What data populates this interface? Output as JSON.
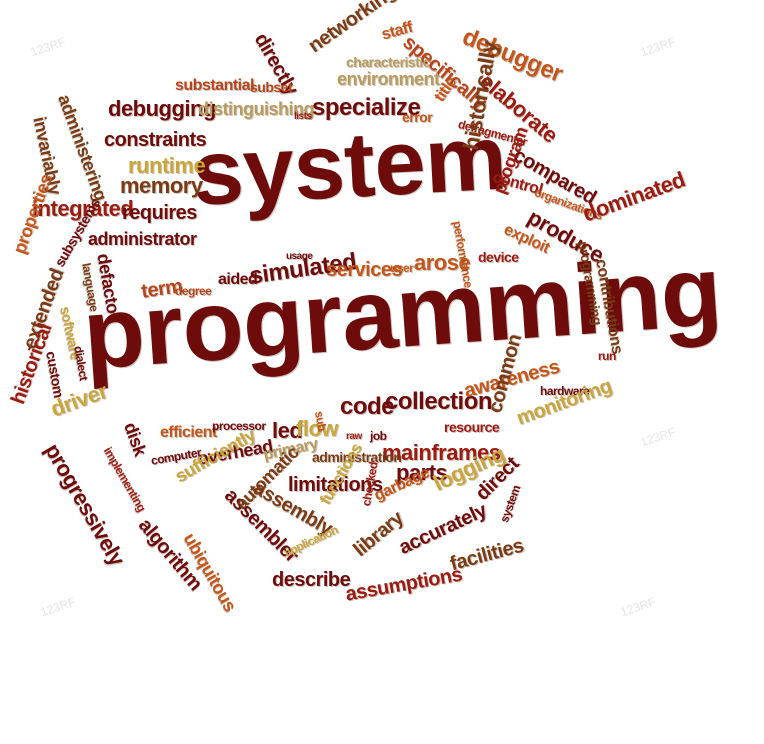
{
  "watermark": "123RF",
  "palette": {
    "maroon": "#6e0b0b",
    "red": "#9b1b10",
    "orange": "#c4561a",
    "tan": "#b89b5e",
    "brown": "#7a3b14",
    "gold": "#c9a63a"
  },
  "words": [
    {
      "text": "system",
      "color": "#6e0b0b"
    },
    {
      "text": "programming",
      "color": "#6e0b0b"
    },
    {
      "text": "directly",
      "color": "#6e0b0b"
    },
    {
      "text": "networking",
      "color": "#7a3b14"
    },
    {
      "text": "staff",
      "color": "#c4561a"
    },
    {
      "text": "specifically",
      "color": "#b8451a"
    },
    {
      "text": "debugger",
      "color": "#c4561a"
    },
    {
      "text": "characteristic",
      "color": "#b89b5e"
    },
    {
      "text": "environment",
      "color": "#b89b5e"
    },
    {
      "text": "elaborate",
      "color": "#9b1b10"
    },
    {
      "text": "substantial",
      "color": "#b8451a"
    },
    {
      "text": "subset",
      "color": "#b8451a"
    },
    {
      "text": "administering",
      "color": "#7a3b14"
    },
    {
      "text": "debugging",
      "color": "#6e0b0b"
    },
    {
      "text": "distinguishing",
      "color": "#b89b5e"
    },
    {
      "text": "specialize",
      "color": "#6e0b0b"
    },
    {
      "text": "title",
      "color": "#c4561a"
    },
    {
      "text": "lists",
      "color": "#9b1b10"
    },
    {
      "text": "error",
      "color": "#c4561a"
    },
    {
      "text": "defragmenter",
      "color": "#9b1b10"
    },
    {
      "text": "invariably",
      "color": "#7a3b14"
    },
    {
      "text": "constraints",
      "color": "#6e0b0b"
    },
    {
      "text": "runtime",
      "color": "#c9a63a"
    },
    {
      "text": "historically",
      "color": "#7a3b14"
    },
    {
      "text": "compared",
      "color": "#6e0b0b"
    },
    {
      "text": "control",
      "color": "#9b1b10"
    },
    {
      "text": "organizations",
      "color": "#c4561a"
    },
    {
      "text": "memory",
      "color": "#7a3b14"
    },
    {
      "text": "integrated",
      "color": "#9b1b10"
    },
    {
      "text": "requires",
      "color": "#6e0b0b"
    },
    {
      "text": "program",
      "color": "#9b1b10"
    },
    {
      "text": "produce",
      "color": "#6e0b0b"
    },
    {
      "text": "dominated",
      "color": "#9b1b10"
    },
    {
      "text": "exploit",
      "color": "#c4561a"
    },
    {
      "text": "administrator",
      "color": "#6e0b0b"
    },
    {
      "text": "usage",
      "color": "#6e0b0b"
    },
    {
      "text": "performance",
      "color": "#c4561a"
    },
    {
      "text": "properties",
      "color": "#c4561a"
    },
    {
      "text": "language",
      "color": "#7a3b14"
    },
    {
      "text": "defacto",
      "color": "#6e0b0b"
    },
    {
      "text": "subsystems",
      "color": "#6e0b0b"
    },
    {
      "text": "term",
      "color": "#b8451a"
    },
    {
      "text": "degree",
      "color": "#b8451a"
    },
    {
      "text": "aided",
      "color": "#6e0b0b"
    },
    {
      "text": "simulated",
      "color": "#6e0b0b"
    },
    {
      "text": "services",
      "color": "#c4561a"
    },
    {
      "text": "user",
      "color": "#c4561a"
    },
    {
      "text": "arose",
      "color": "#c4561a"
    },
    {
      "text": "device",
      "color": "#9b1b10"
    },
    {
      "text": "programming",
      "color": "#7a3b14"
    },
    {
      "text": "contributions",
      "color": "#7a3b14"
    },
    {
      "text": "software",
      "color": "#c9a63a"
    },
    {
      "text": "extended",
      "color": "#7a3b14"
    },
    {
      "text": "dialect",
      "color": "#6e0b0b"
    },
    {
      "text": "custom",
      "color": "#6e0b0b"
    },
    {
      "text": "run",
      "color": "#9b1b10"
    },
    {
      "text": "historical",
      "color": "#9b1b10"
    },
    {
      "text": "driver",
      "color": "#c9a63a"
    },
    {
      "text": "code",
      "color": "#6e0b0b"
    },
    {
      "text": "collection",
      "color": "#6e0b0b"
    },
    {
      "text": "awareness",
      "color": "#c4561a"
    },
    {
      "text": "hardware",
      "color": "#6e0b0b"
    },
    {
      "text": "resource",
      "color": "#9b1b10"
    },
    {
      "text": "common",
      "color": "#7a3b14"
    },
    {
      "text": "monitoring",
      "color": "#c9a63a"
    },
    {
      "text": "led",
      "color": "#6e0b0b"
    },
    {
      "text": "flow",
      "color": "#c9a63a"
    },
    {
      "text": "sub",
      "color": "#c4561a"
    },
    {
      "text": "job",
      "color": "#6e0b0b"
    },
    {
      "text": "raw",
      "color": "#9b1b10"
    },
    {
      "text": "disk",
      "color": "#6e0b0b"
    },
    {
      "text": "efficient",
      "color": "#c4561a"
    },
    {
      "text": "processor",
      "color": "#6e0b0b"
    },
    {
      "text": "mainframes",
      "color": "#9b1b10"
    },
    {
      "text": "progressively",
      "color": "#6e0b0b"
    },
    {
      "text": "computer",
      "color": "#6e0b0b"
    },
    {
      "text": "overhead",
      "color": "#6e0b0b"
    },
    {
      "text": "primary",
      "color": "#b89b5e"
    },
    {
      "text": "administration",
      "color": "#7a3b14"
    },
    {
      "text": "parts",
      "color": "#6e0b0b"
    },
    {
      "text": "implementing",
      "color": "#9b1b10"
    },
    {
      "text": "sufficiently",
      "color": "#c9a63a"
    },
    {
      "text": "limitations",
      "color": "#6e0b0b"
    },
    {
      "text": "logging",
      "color": "#c9a63a"
    },
    {
      "text": "assembly",
      "color": "#7a3b14"
    },
    {
      "text": "garbage",
      "color": "#c4561a"
    },
    {
      "text": "direct",
      "color": "#6e0b0b"
    },
    {
      "text": "algorithm",
      "color": "#6e0b0b"
    },
    {
      "text": "assembler",
      "color": "#6e0b0b"
    },
    {
      "text": "automatic",
      "color": "#7a3b14"
    },
    {
      "text": "functions",
      "color": "#c9a63a"
    },
    {
      "text": "checked",
      "color": "#9b1b10"
    },
    {
      "text": "library",
      "color": "#7a3b14"
    },
    {
      "text": "accurately",
      "color": "#6e0b0b"
    },
    {
      "text": "system",
      "color": "#6e0b0b"
    },
    {
      "text": "ubiquitous",
      "color": "#c4561a"
    },
    {
      "text": "application",
      "color": "#c9a63a"
    },
    {
      "text": "describe",
      "color": "#6e0b0b"
    },
    {
      "text": "assumptions",
      "color": "#9b1b10"
    },
    {
      "text": "facilities",
      "color": "#7a3b14"
    }
  ]
}
